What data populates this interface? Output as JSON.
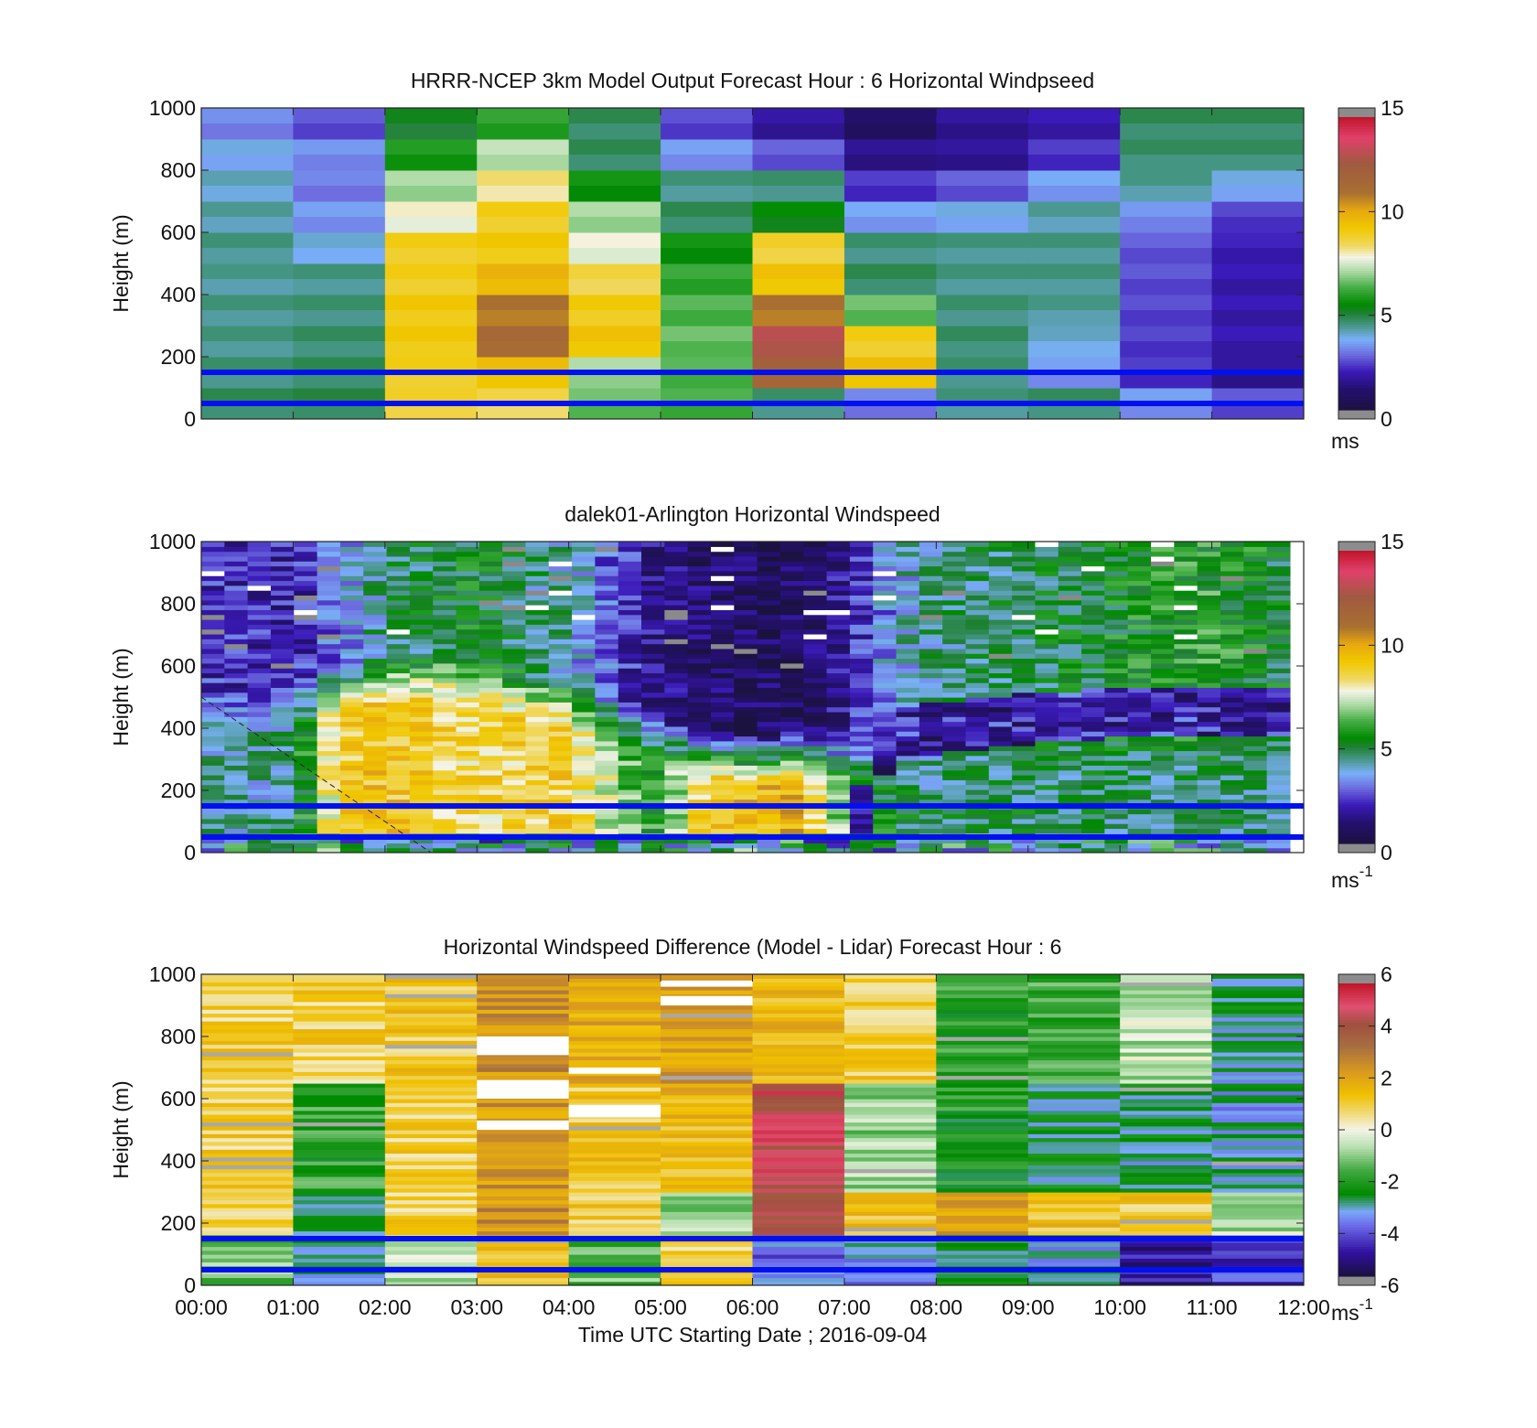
{
  "figure": {
    "xlabel": "Time UTC  Starting Date ; 2016-09-04",
    "x_ticks": [
      "00:00",
      "01:00",
      "02:00",
      "03:00",
      "04:00",
      "05:00",
      "06:00",
      "07:00",
      "08:00",
      "09:00",
      "10:00",
      "11:00",
      "12:00"
    ]
  },
  "chart_data": [
    {
      "type": "heatmap",
      "title": "HRRR-NCEP 3km Model Output   Forecast Hour : 6 Horizontal Windpseed",
      "ylabel": "Height (m)",
      "xlim_hours": [
        0,
        12
      ],
      "ylim": [
        0,
        1000
      ],
      "y_ticks": [
        "0",
        "200",
        "400",
        "600",
        "800",
        "1000"
      ],
      "colorbar": {
        "ticks": [
          "0",
          "5",
          "10",
          "15"
        ],
        "range": [
          0,
          15
        ],
        "unit": "ms",
        "colormap": "wind"
      },
      "hlines_m": [
        150,
        50
      ],
      "heights_m": [
        50,
        150,
        250,
        350,
        450,
        550,
        650,
        750,
        850,
        950
      ],
      "columns_hours": [
        0.5,
        1.5,
        2.5,
        3.5,
        4.5,
        5.5,
        6.5,
        7.5,
        8.5,
        9.5,
        10.5,
        11.5
      ],
      "speed_grid": [
        [
          4.6,
          4.7,
          8.8,
          8.5,
          6.5,
          6.2,
          4.4,
          3.0,
          4.3,
          4.5,
          3.3,
          2.5
        ],
        [
          4.4,
          4.6,
          9.0,
          9.5,
          7.0,
          6.3,
          12.0,
          9.5,
          4.4,
          3.3,
          2.2,
          1.5
        ],
        [
          4.3,
          4.5,
          9.2,
          11.5,
          9.4,
          6.5,
          13.0,
          9.0,
          4.5,
          3.8,
          2.3,
          1.8
        ],
        [
          4.3,
          4.4,
          9.2,
          11.0,
          9.1,
          6.3,
          11.0,
          6.5,
          4.4,
          4.2,
          2.4,
          1.8
        ],
        [
          4.2,
          4.3,
          9.0,
          9.8,
          8.6,
          6.0,
          9.4,
          4.6,
          4.3,
          4.3,
          2.5,
          1.8
        ],
        [
          4.3,
          3.7,
          9.0,
          9.2,
          7.7,
          5.5,
          8.8,
          4.4,
          4.3,
          4.3,
          2.6,
          1.9
        ],
        [
          4.1,
          3.3,
          7.8,
          9.0,
          7.0,
          4.6,
          5.3,
          3.4,
          3.6,
          4.1,
          3.2,
          2.3
        ],
        [
          3.9,
          3.0,
          7.0,
          8.2,
          5.5,
          4.3,
          4.4,
          2.2,
          2.6,
          3.4,
          4.2,
          3.6
        ],
        [
          3.6,
          3.2,
          5.7,
          7.2,
          4.6,
          3.3,
          2.6,
          1.4,
          1.5,
          2.2,
          4.5,
          4.5
        ],
        [
          3.1,
          2.5,
          5.0,
          5.9,
          4.6,
          2.4,
          1.6,
          0.8,
          1.5,
          1.8,
          4.6,
          4.6
        ]
      ]
    },
    {
      "type": "heatmap",
      "title": "dalek01-Arlington  Horizontal Windspeed",
      "ylabel": "Height (m)",
      "xlim_hours": [
        0,
        12
      ],
      "ylim": [
        0,
        1000
      ],
      "y_ticks": [
        "0",
        "200",
        "400",
        "600",
        "800",
        "1000"
      ],
      "colorbar": {
        "ticks": [
          "0",
          "5",
          "10",
          "15"
        ],
        "range": [
          0,
          15
        ],
        "unit": "ms-1",
        "colormap": "wind"
      },
      "hlines_m": [
        150,
        50
      ],
      "profile_hours": [
        0.0,
        1.0,
        1.5,
        2.0,
        3.0,
        4.0,
        4.5,
        5.0,
        5.5,
        6.0,
        6.5,
        7.0,
        7.5,
        8.0,
        9.0,
        10.0,
        11.0,
        11.8
      ],
      "low_layer_speed": [
        4.0,
        4.2,
        9.0,
        9.4,
        8.6,
        9.0,
        7.0,
        5.5,
        9.2,
        9.6,
        9.8,
        6.5,
        5.0,
        4.5,
        4.8,
        4.5,
        4.6,
        4.5
      ],
      "low_layer_top_m": [
        450,
        480,
        520,
        560,
        560,
        480,
        420,
        380,
        320,
        300,
        320,
        300,
        260,
        260,
        300,
        330,
        330,
        300
      ],
      "upper_speed": [
        2.2,
        1.8,
        3.0,
        4.5,
        5.2,
        4.0,
        2.6,
        1.2,
        0.9,
        0.7,
        0.6,
        1.5,
        3.4,
        4.4,
        4.7,
        5.3,
        5.8,
        5.0
      ],
      "mid_band_m": [
        0,
        0,
        0,
        0,
        0,
        0,
        0,
        0,
        0,
        0,
        0,
        0,
        380,
        400,
        430,
        450,
        450,
        450
      ],
      "mid_band_speed": 1.2,
      "dashed_line": {
        "x_hours": [
          0.0,
          2.5
        ],
        "y_m": [
          500,
          0
        ]
      },
      "data_end_hour": 11.85
    },
    {
      "type": "heatmap",
      "title": "Horizontal Windspeed Difference (Model - Lidar) Forecast Hour : 6",
      "ylabel": "Height (m)",
      "xlim_hours": [
        0,
        12
      ],
      "ylim": [
        0,
        1000
      ],
      "y_ticks": [
        "0",
        "200",
        "400",
        "600",
        "800",
        "1000"
      ],
      "colorbar": {
        "ticks": [
          "-6",
          "-4",
          "-2",
          "0",
          "2",
          "4",
          "6"
        ],
        "range": [
          -6,
          6
        ],
        "unit": "ms-1",
        "colormap": "diff"
      },
      "hlines_m": [
        150,
        50
      ],
      "columns_hours": [
        0.5,
        1.5,
        2.5,
        3.5,
        4.5,
        5.5,
        6.5,
        7.5,
        8.5,
        9.5,
        10.5,
        11.5
      ],
      "upper_diff": [
        1.0,
        1.0,
        1.2,
        2.6,
        2.0,
        2.3,
        1.6,
        1.0,
        -2.0,
        -1.8,
        -0.6,
        -3.0
      ],
      "mid_diff": [
        1.0,
        -2.0,
        1.0,
        2.4,
        1.2,
        1.6,
        4.8,
        -1.0,
        -2.2,
        -2.8,
        -3.0,
        -3.2
      ],
      "low_diff": [
        0.9,
        -2.8,
        0.9,
        2.6,
        1.0,
        -0.8,
        4.5,
        1.2,
        2.2,
        1.3,
        1.1,
        -0.6
      ],
      "near_ground_diff": [
        -1.2,
        -3.0,
        -0.5,
        1.5,
        -1.5,
        1.0,
        -4.0,
        -3.5,
        -2.5,
        -3.2,
        -5.0,
        -4.5
      ],
      "white_gaps": [
        {
          "col": 3,
          "y_m": [
            740,
            800
          ]
        },
        {
          "col": 3,
          "y_m": [
            600,
            660
          ]
        },
        {
          "col": 3,
          "y_m": [
            500,
            530
          ]
        },
        {
          "col": 4,
          "y_m": [
            540,
            580
          ]
        },
        {
          "col": 4,
          "y_m": [
            680,
            700
          ]
        },
        {
          "col": 5,
          "y_m": [
            900,
            930
          ]
        },
        {
          "col": 5,
          "y_m": [
            960,
            980
          ]
        }
      ]
    }
  ]
}
